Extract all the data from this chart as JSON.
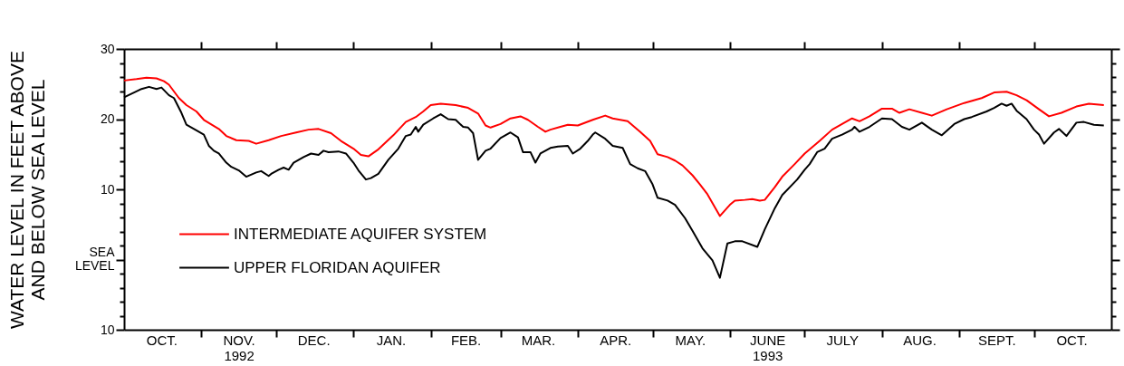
{
  "chart_data": {
    "type": "line",
    "ylabel": "WATER LEVEL IN FEET ABOVE\nAND BELOW SEA LEVEL",
    "xlim": [
      "1992-10-01",
      "1993-11-01"
    ],
    "xticks": [
      {
        "value": "1992-10-16",
        "label": "OCT."
      },
      {
        "value": "1992-11-01",
        "label": null
      },
      {
        "value": "1992-11-16",
        "label": "NOV.\n1992"
      },
      {
        "value": "1992-12-01",
        "label": null
      },
      {
        "value": "1992-12-16",
        "label": "DEC."
      },
      {
        "value": "1993-01-01",
        "label": null
      },
      {
        "value": "1993-01-16",
        "label": "JAN."
      },
      {
        "value": "1993-02-01",
        "label": null
      },
      {
        "value": "1993-02-15",
        "label": "FEB."
      },
      {
        "value": "1993-03-01",
        "label": null
      },
      {
        "value": "1993-03-16",
        "label": "MAR."
      },
      {
        "value": "1993-04-01",
        "label": null
      },
      {
        "value": "1993-04-16",
        "label": "APR."
      },
      {
        "value": "1993-05-01",
        "label": null
      },
      {
        "value": "1993-05-16",
        "label": "MAY."
      },
      {
        "value": "1993-06-01",
        "label": null
      },
      {
        "value": "1993-06-16",
        "label": "JUNE\n1993"
      },
      {
        "value": "1993-07-01",
        "label": null
      },
      {
        "value": "1993-07-16",
        "label": "JULY"
      },
      {
        "value": "1993-08-01",
        "label": null
      },
      {
        "value": "1993-08-16",
        "label": "AUG."
      },
      {
        "value": "1993-09-01",
        "label": null
      },
      {
        "value": "1993-09-16",
        "label": "SEPT."
      },
      {
        "value": "1993-10-01",
        "label": null
      },
      {
        "value": "1993-10-16",
        "label": "OCT."
      }
    ],
    "ylim": [
      -10,
      30
    ],
    "yticks": [
      {
        "value": -10,
        "label": "10"
      },
      {
        "value": -8,
        "label": null
      },
      {
        "value": -6,
        "label": null
      },
      {
        "value": -4,
        "label": null
      },
      {
        "value": -2,
        "label": null
      },
      {
        "value": 0,
        "label": "SEA\nLEVEL"
      },
      {
        "value": 2,
        "label": null
      },
      {
        "value": 4,
        "label": null
      },
      {
        "value": 6,
        "label": null
      },
      {
        "value": 8,
        "label": null
      },
      10,
      {
        "value": 12,
        "label": null
      },
      {
        "value": 14,
        "label": null
      },
      {
        "value": 16,
        "label": null
      },
      {
        "value": 18,
        "label": null
      },
      20,
      {
        "value": 22,
        "label": null
      },
      {
        "value": 24,
        "label": null
      },
      {
        "value": 26,
        "label": null
      },
      {
        "value": 28,
        "label": null
      },
      30
    ],
    "grid": false,
    "legend": "bottom left",
    "marker": "none",
    "line_style": "solid",
    "series": [
      {
        "name": "INTERMEDIATE AQUIFER SYSTEM",
        "color": "#ff0000",
        "x": [
          "1992-10-01",
          "1992-10-06",
          "1992-10-10",
          "1992-10-14",
          "1992-10-17",
          "1992-10-19",
          "1992-10-23",
          "1992-10-26",
          "1992-10-30",
          "1992-11-02",
          "1992-11-08",
          "1992-11-11",
          "1992-11-15",
          "1992-11-20",
          "1992-11-23",
          "1992-11-28",
          "1992-12-03",
          "1992-12-09",
          "1992-12-14",
          "1992-12-18",
          "1992-12-23",
          "1992-12-27",
          "1993-01-01",
          "1993-01-04",
          "1993-01-07",
          "1993-01-11",
          "1993-01-17",
          "1993-01-22",
          "1993-01-26",
          "1993-01-29",
          "1993-02-01",
          "1993-02-05",
          "1993-02-11",
          "1993-02-16",
          "1993-02-20",
          "1993-02-23",
          "1993-02-25",
          "1993-03-01",
          "1993-03-05",
          "1993-03-09",
          "1993-03-12",
          "1993-03-16",
          "1993-03-19",
          "1993-03-21",
          "1993-03-25",
          "1993-03-28",
          "1993-04-01",
          "1993-04-07",
          "1993-04-12",
          "1993-04-15",
          "1993-04-21",
          "1993-04-26",
          "1993-04-30",
          "1993-05-03",
          "1993-05-07",
          "1993-05-10",
          "1993-05-13",
          "1993-05-17",
          "1993-05-20",
          "1993-05-23",
          "1993-05-28",
          "1993-06-01",
          "1993-06-03",
          "1993-06-07",
          "1993-06-10",
          "1993-06-13",
          "1993-06-15",
          "1993-06-19",
          "1993-06-22",
          "1993-06-27",
          "1993-07-01",
          "1993-07-07",
          "1993-07-12",
          "1993-07-16",
          "1993-07-20",
          "1993-07-23",
          "1993-07-27",
          "1993-08-01",
          "1993-08-05",
          "1993-08-08",
          "1993-08-12",
          "1993-08-17",
          "1993-08-21",
          "1993-08-27",
          "1993-09-03",
          "1993-09-10",
          "1993-09-15",
          "1993-09-20",
          "1993-09-24",
          "1993-09-28",
          "1993-10-03",
          "1993-10-07",
          "1993-10-12",
          "1993-10-18",
          "1993-10-23",
          "1993-10-29"
        ],
        "values": [
          25.5,
          25.7,
          25.9,
          25.8,
          25.4,
          24.9,
          23.0,
          22.0,
          21.1,
          19.9,
          18.6,
          17.6,
          17.0,
          16.9,
          16.5,
          17.0,
          17.6,
          18.1,
          18.5,
          18.6,
          18.0,
          16.9,
          15.8,
          14.9,
          14.7,
          15.7,
          17.7,
          19.6,
          20.3,
          21.1,
          22.0,
          22.2,
          22.0,
          21.6,
          20.8,
          19.1,
          18.8,
          19.3,
          20.1,
          20.4,
          19.9,
          18.9,
          18.2,
          18.5,
          18.9,
          19.2,
          19.1,
          19.9,
          20.5,
          20.1,
          19.7,
          18.2,
          16.9,
          15.0,
          14.6,
          14.1,
          13.4,
          12.0,
          10.7,
          9.3,
          6.2,
          7.8,
          8.4,
          8.5,
          8.6,
          8.4,
          8.5,
          10.3,
          11.8,
          13.6,
          15.1,
          16.9,
          18.5,
          19.3,
          20.1,
          19.7,
          20.4,
          21.5,
          21.5,
          20.9,
          21.4,
          20.9,
          20.5,
          21.4,
          22.3,
          23.0,
          23.8,
          23.9,
          23.4,
          22.7,
          21.4,
          20.4,
          20.9,
          21.8,
          22.2,
          22.0
        ]
      },
      {
        "name": "UPPER FLORIDAN AQUIFER",
        "color": "#000000",
        "x": [
          "1992-10-01",
          "1992-10-05",
          "1992-10-08",
          "1992-10-11",
          "1992-10-14",
          "1992-10-16",
          "1992-10-19",
          "1992-10-21",
          "1992-10-24",
          "1992-10-26",
          "1992-10-30",
          "1992-11-02",
          "1992-11-04",
          "1992-11-06",
          "1992-11-08",
          "1992-11-11",
          "1992-11-13",
          "1992-11-16",
          "1992-11-19",
          "1992-11-23",
          "1992-11-25",
          "1992-11-28",
          "1992-11-29",
          "1992-12-02",
          "1992-12-04",
          "1992-12-06",
          "1992-12-08",
          "1992-12-12",
          "1992-12-15",
          "1992-12-18",
          "1992-12-20",
          "1992-12-22",
          "1992-12-26",
          "1992-12-29",
          "1993-01-01",
          "1993-01-03",
          "1993-01-06",
          "1993-01-08",
          "1993-01-11",
          "1993-01-15",
          "1993-01-19",
          "1993-01-22",
          "1993-01-24",
          "1993-01-26",
          "1993-01-27",
          "1993-01-29",
          "1993-02-02",
          "1993-02-05",
          "1993-02-08",
          "1993-02-11",
          "1993-02-14",
          "1993-02-16",
          "1993-02-18",
          "1993-02-20",
          "1993-02-23",
          "1993-02-25",
          "1993-03-01",
          "1993-03-05",
          "1993-03-08",
          "1993-03-10",
          "1993-03-13",
          "1993-03-15",
          "1993-03-17",
          "1993-03-21",
          "1993-03-24",
          "1993-03-28",
          "1993-03-30",
          "1993-04-02",
          "1993-04-05",
          "1993-04-07",
          "1993-04-08",
          "1993-04-12",
          "1993-04-15",
          "1993-04-19",
          "1993-04-22",
          "1993-04-25",
          "1993-04-28",
          "1993-05-01",
          "1993-05-03",
          "1993-05-07",
          "1993-05-10",
          "1993-05-14",
          "1993-05-17",
          "1993-05-21",
          "1993-05-25",
          "1993-05-28",
          "1993-05-31",
          "1993-06-03",
          "1993-06-06",
          "1993-06-12",
          "1993-06-15",
          "1993-06-19",
          "1993-06-22",
          "1993-06-28",
          "1993-07-01",
          "1993-07-03",
          "1993-07-06",
          "1993-07-09",
          "1993-07-12",
          "1993-07-16",
          "1993-07-20",
          "1993-07-21",
          "1993-07-23",
          "1993-07-27",
          "1993-08-01",
          "1993-08-05",
          "1993-08-09",
          "1993-08-12",
          "1993-08-17",
          "1993-08-21",
          "1993-08-25",
          "1993-08-30",
          "1993-09-03",
          "1993-09-06",
          "1993-09-12",
          "1993-09-15",
          "1993-09-18",
          "1993-09-20",
          "1993-09-22",
          "1993-09-24",
          "1993-09-28",
          "1993-10-01",
          "1993-10-03",
          "1993-10-05",
          "1993-10-09",
          "1993-10-11",
          "1993-10-14",
          "1993-10-18",
          "1993-10-21",
          "1993-10-25",
          "1993-10-29"
        ],
        "values": [
          23.1,
          23.8,
          24.3,
          24.6,
          24.3,
          24.5,
          23.4,
          23.0,
          20.9,
          19.2,
          18.4,
          17.8,
          16.2,
          15.5,
          15.1,
          13.8,
          13.2,
          12.7,
          11.8,
          12.4,
          12.6,
          11.9,
          12.2,
          12.8,
          13.1,
          12.8,
          13.8,
          14.6,
          15.1,
          14.9,
          15.5,
          15.3,
          15.4,
          15.1,
          13.8,
          12.7,
          11.4,
          11.6,
          12.2,
          14.2,
          15.8,
          17.6,
          17.8,
          18.9,
          18.2,
          19.2,
          20.1,
          20.7,
          20.0,
          19.9,
          18.9,
          18.8,
          18.0,
          14.2,
          15.5,
          15.8,
          17.3,
          18.1,
          17.4,
          15.3,
          15.3,
          13.8,
          15.1,
          15.9,
          16.1,
          16.2,
          15.1,
          15.8,
          16.9,
          17.8,
          18.1,
          17.2,
          16.2,
          15.9,
          13.6,
          13.0,
          12.6,
          10.7,
          8.8,
          8.4,
          7.8,
          5.9,
          4.1,
          1.6,
          -0.1,
          -2.6,
          2.3,
          2.6,
          2.6,
          1.8,
          4.3,
          7.3,
          9.2,
          11.4,
          12.8,
          13.6,
          15.3,
          15.8,
          17.2,
          17.8,
          18.5,
          18.9,
          18.2,
          18.9,
          20.1,
          20.0,
          18.9,
          18.5,
          19.5,
          18.5,
          17.7,
          19.3,
          20.0,
          20.3,
          21.1,
          21.6,
          22.2,
          21.9,
          22.2,
          21.2,
          20.0,
          18.5,
          17.8,
          16.5,
          18.1,
          18.6,
          17.6,
          19.5,
          19.6,
          19.2,
          19.1
        ]
      }
    ]
  }
}
